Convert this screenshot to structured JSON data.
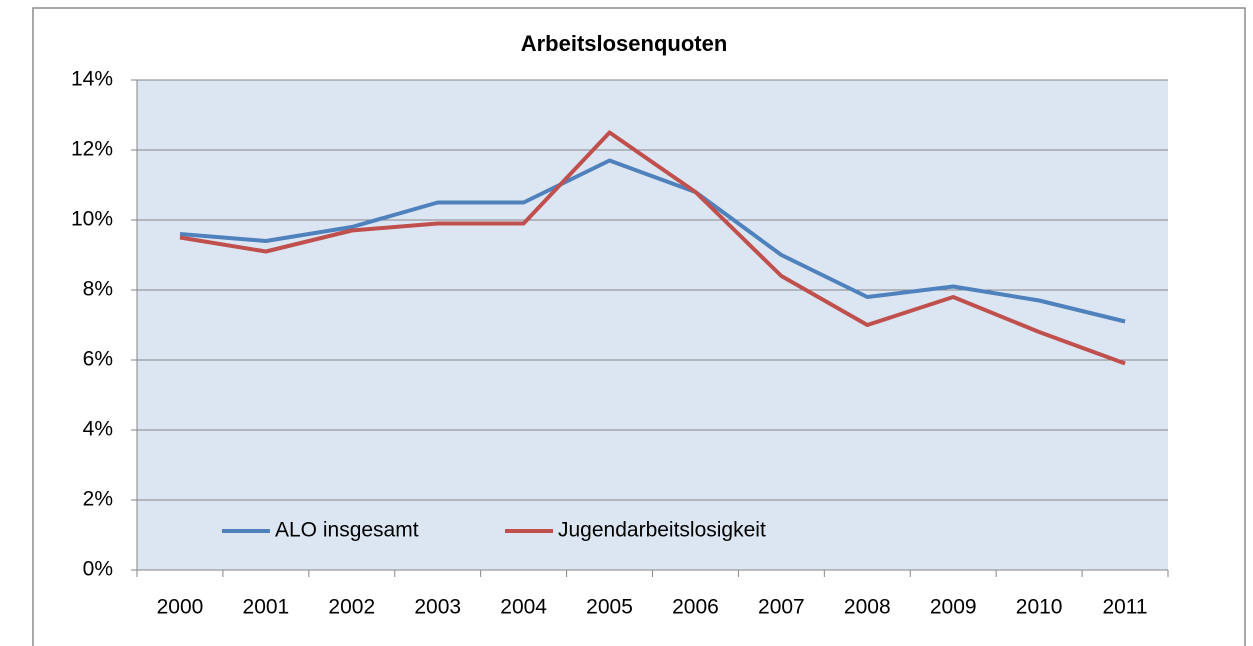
{
  "chart_data": {
    "type": "line",
    "title": "Arbeitslosenquoten",
    "categories": [
      "2000",
      "2001",
      "2002",
      "2003",
      "2004",
      "2005",
      "2006",
      "2007",
      "2008",
      "2009",
      "2010",
      "2011"
    ],
    "series": [
      {
        "name": "ALO insgesamt",
        "color": "#4f81bd",
        "values": [
          9.6,
          9.4,
          9.8,
          10.5,
          10.5,
          11.7,
          10.8,
          9.0,
          7.8,
          8.1,
          7.7,
          7.1
        ]
      },
      {
        "name": "Jugendarbeitslosigkeit",
        "color": "#c0504d",
        "values": [
          9.5,
          9.1,
          9.7,
          9.9,
          9.9,
          12.5,
          10.8,
          8.4,
          7.0,
          7.8,
          6.8,
          5.9
        ]
      }
    ],
    "ylim": [
      0,
      14
    ],
    "yticks": [
      {
        "value": 0,
        "label": "0%"
      },
      {
        "value": 2,
        "label": "2%"
      },
      {
        "value": 4,
        "label": "4%"
      },
      {
        "value": 6,
        "label": "6%"
      },
      {
        "value": 8,
        "label": "8%"
      },
      {
        "value": 10,
        "label": "10%"
      },
      {
        "value": 12,
        "label": "12%"
      },
      {
        "value": 14,
        "label": "14%"
      }
    ],
    "grid": true,
    "legend": "bottom-left"
  }
}
